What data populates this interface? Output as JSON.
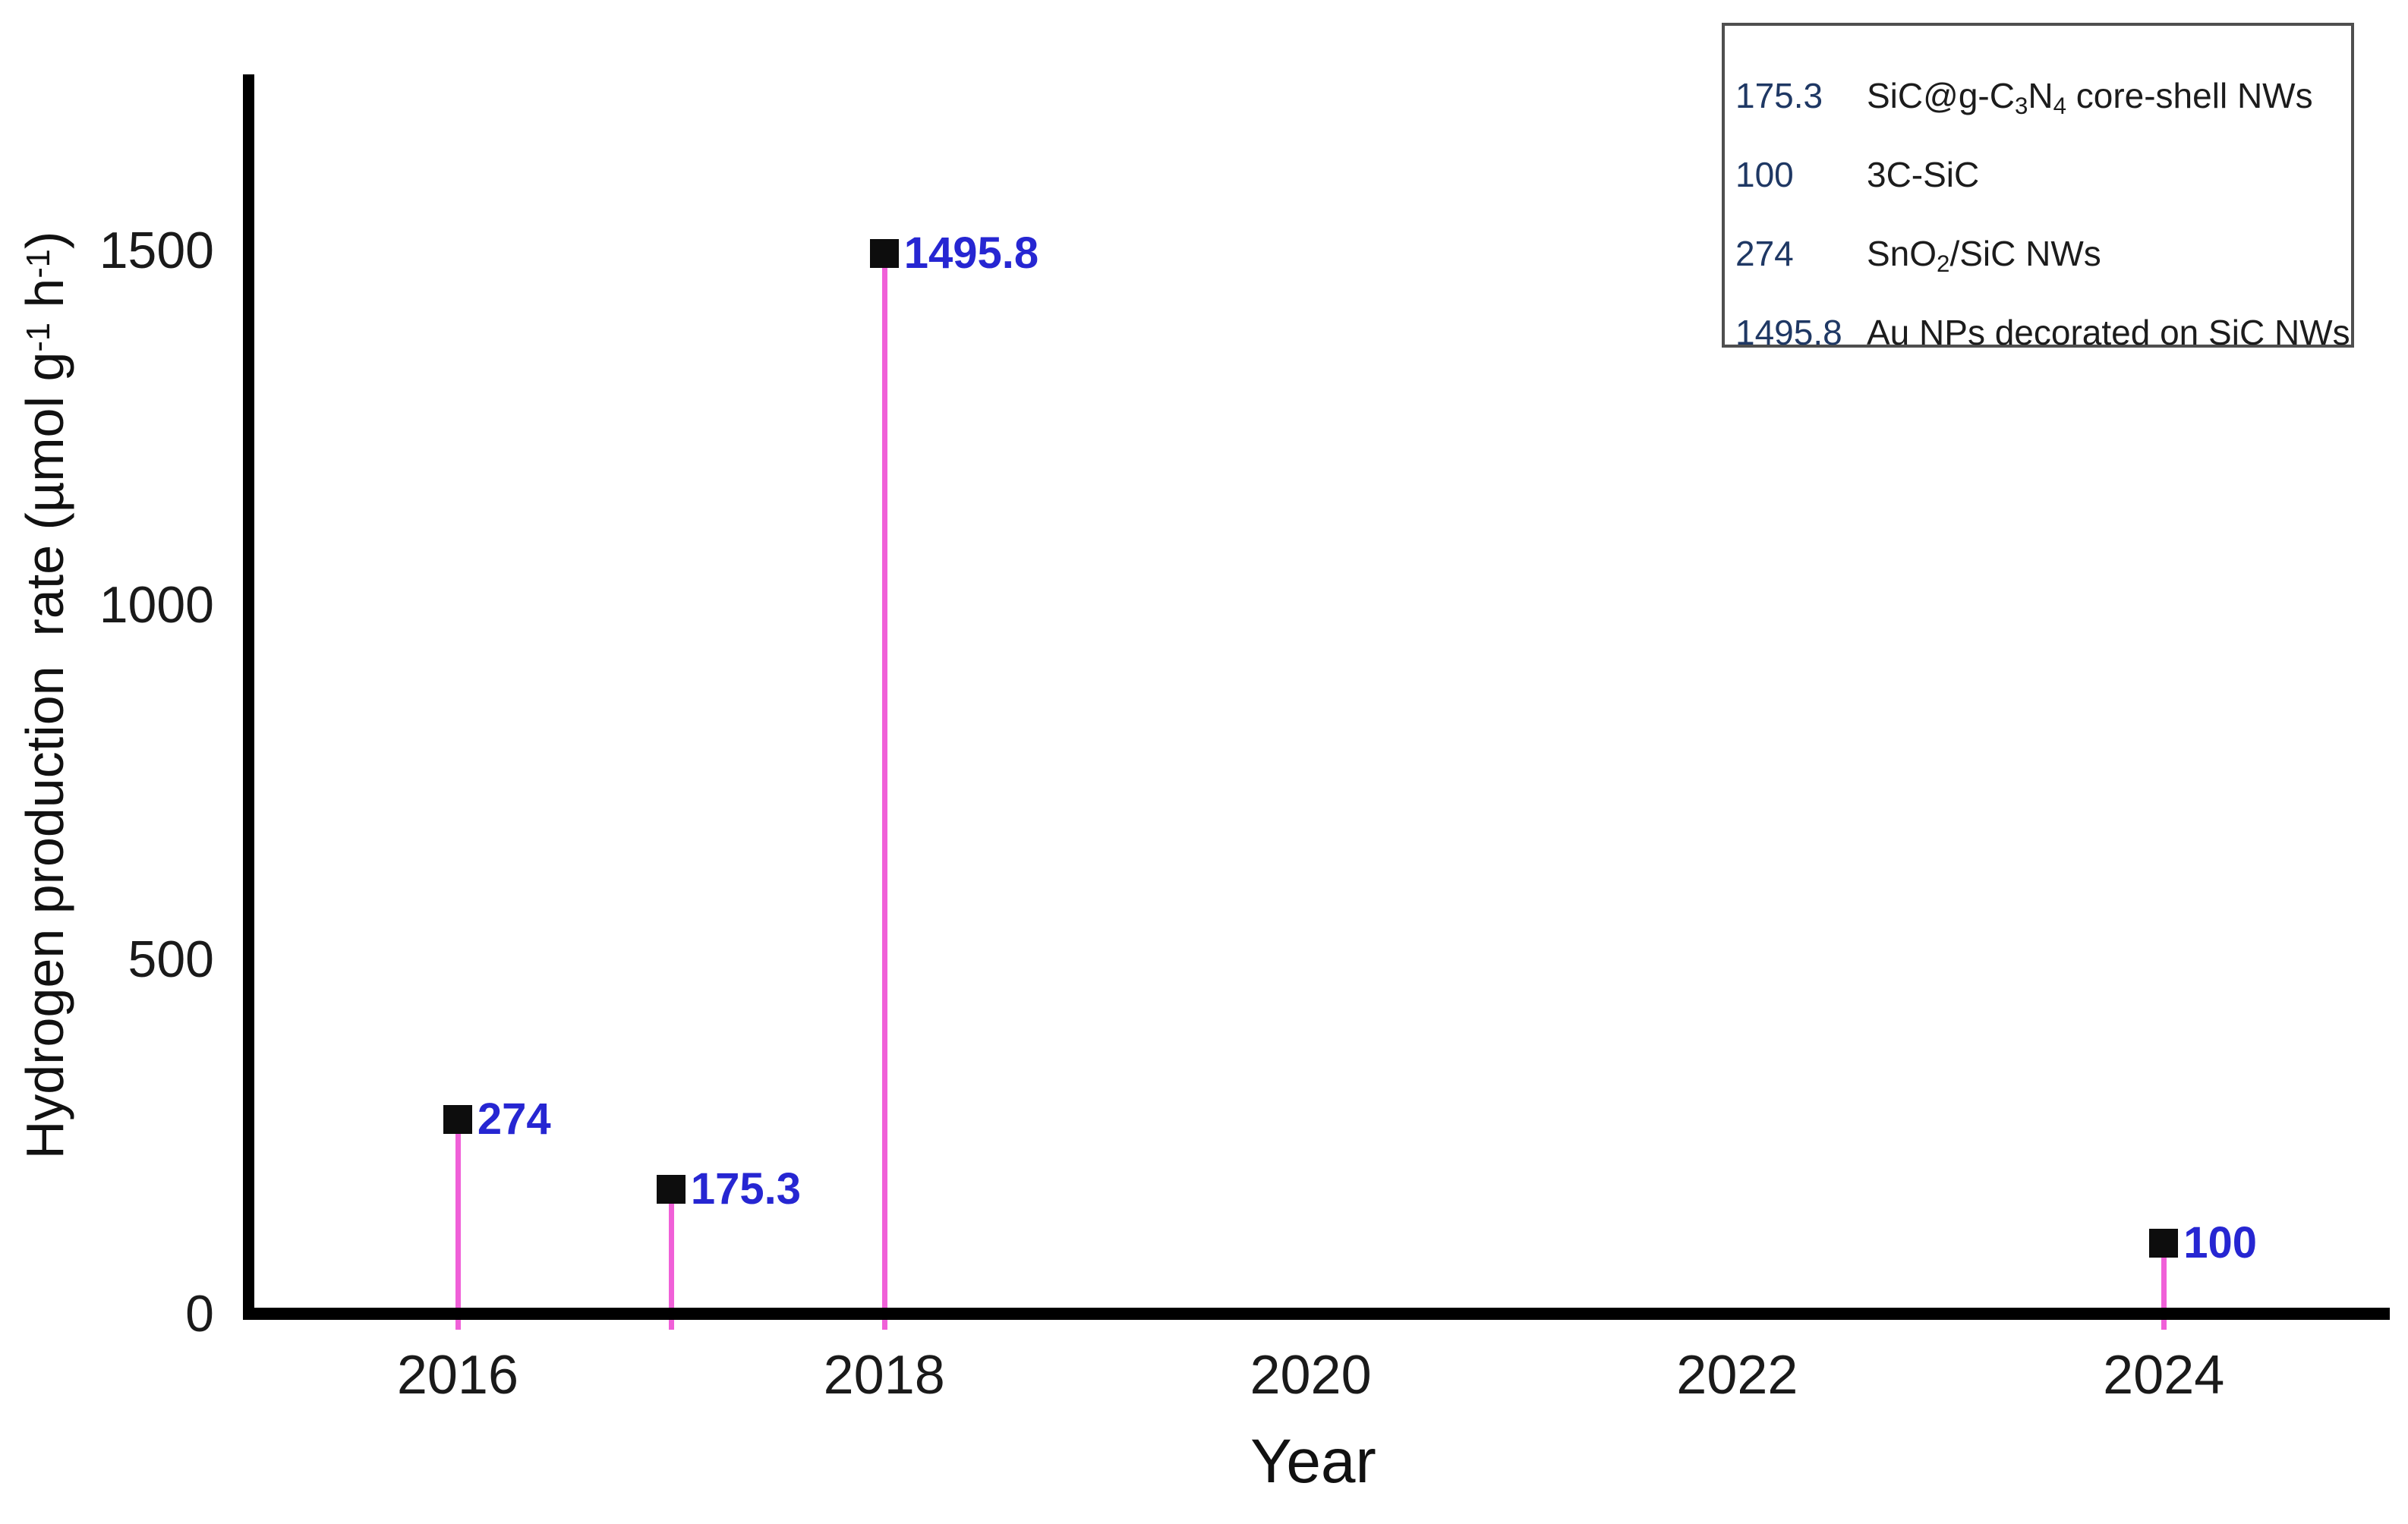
{
  "chart_data": {
    "type": "scatter",
    "title": "",
    "xlabel": "Year",
    "ylabel_text": "Hydrogen production  rate (µmol g⁻¹ h⁻¹)",
    "ylabel_segments": [
      {
        "t": "Hydrogen production  rate (µmol g"
      },
      {
        "t": "-1",
        "sup": true
      },
      {
        "t": " h",
        "sup": false
      },
      {
        "t": "-1",
        "sup": true
      },
      {
        "t": ")"
      }
    ],
    "xlim": [
      2015.0,
      2025.06
    ],
    "ylim": [
      0,
      1749
    ],
    "grid": false,
    "x_ticks": [
      {
        "v": 2016,
        "label": "2016"
      },
      {
        "v": 2018,
        "label": "2018"
      },
      {
        "v": 2020,
        "label": "2020"
      },
      {
        "v": 2022,
        "label": "2022"
      },
      {
        "v": 2024,
        "label": "2024"
      }
    ],
    "y_ticks": [
      {
        "v": 0,
        "label": "0"
      },
      {
        "v": 500,
        "label": "500"
      },
      {
        "v": 1000,
        "label": "1000"
      },
      {
        "v": 1500,
        "label": "1500"
      }
    ],
    "points": [
      {
        "x": 2016,
        "y": 274,
        "label": "274",
        "material": "SnO2/SiC NWs"
      },
      {
        "x": 2017,
        "y": 175.3,
        "label": "175.3",
        "material": "SiC@g-C3N4 core-shell NWs"
      },
      {
        "x": 2018,
        "y": 1495.8,
        "label": "1495.8",
        "material": "Au NPs decorated on SiC NWs"
      },
      {
        "x": 2024,
        "y": 100,
        "label": "100",
        "material": "3C-SiC"
      }
    ],
    "legend": {
      "position": "top-right",
      "rows": [
        {
          "value": "175.3",
          "name_segments": [
            {
              "t": "SiC@g-C"
            },
            {
              "t": "3",
              "sub": true
            },
            {
              "t": "N"
            },
            {
              "t": "4",
              "sub": true
            },
            {
              "t": " core-shell NWs"
            }
          ]
        },
        {
          "value": "100",
          "name_segments": [
            {
              "t": "3C-SiC"
            }
          ]
        },
        {
          "value": "274",
          "name_segments": [
            {
              "t": "SnO"
            },
            {
              "t": "2",
              "sub": true
            },
            {
              "t": "/SiC NWs"
            }
          ]
        },
        {
          "value": "1495.8",
          "name_segments": [
            {
              "t": "Au NPs decorated on SiC NWs"
            }
          ]
        }
      ]
    },
    "colors": {
      "background": "#ffffff",
      "axis": "#000000",
      "stem": "#f060d8",
      "marker": "#0d0d0d",
      "point_label": "#2626d2",
      "tick_label": "#1a1a1a",
      "legend_border": "#4f4f4f",
      "legend_value": "#1f3864",
      "legend_name": "#1c1c1c"
    }
  }
}
